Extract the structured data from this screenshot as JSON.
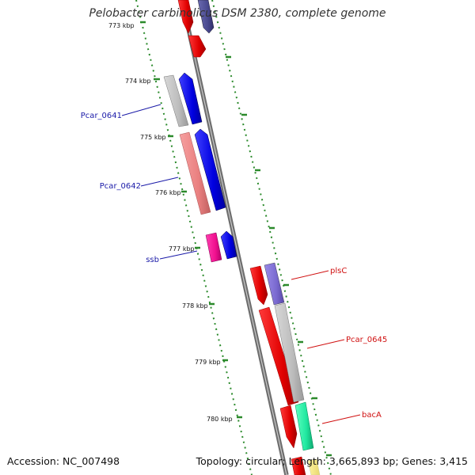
{
  "title": "Pelobacter carbinolicus DSM 2380, complete genome",
  "footer": {
    "accession": "Accession: NC_007498",
    "summary": "Topology: circular; Length: 3,665,893 bp; Genes: 3,415"
  },
  "colors": {
    "backbone": "#8a8a8a",
    "tick_marks": "#2b8a2b",
    "left_labels": "#1a1aa8",
    "right_labels": "#d01010"
  },
  "kbp_ticks": [
    "773 kbp",
    "774 kbp",
    "775 kbp",
    "776 kbp",
    "777 kbp",
    "778 kbp",
    "779 kbp",
    "780 kbp"
  ],
  "gene_labels": {
    "left": [
      "Pcar_0641",
      "Pcar_0642",
      "ssb"
    ],
    "right": [
      "plsC",
      "Pcar_0645",
      "bacA"
    ]
  }
}
